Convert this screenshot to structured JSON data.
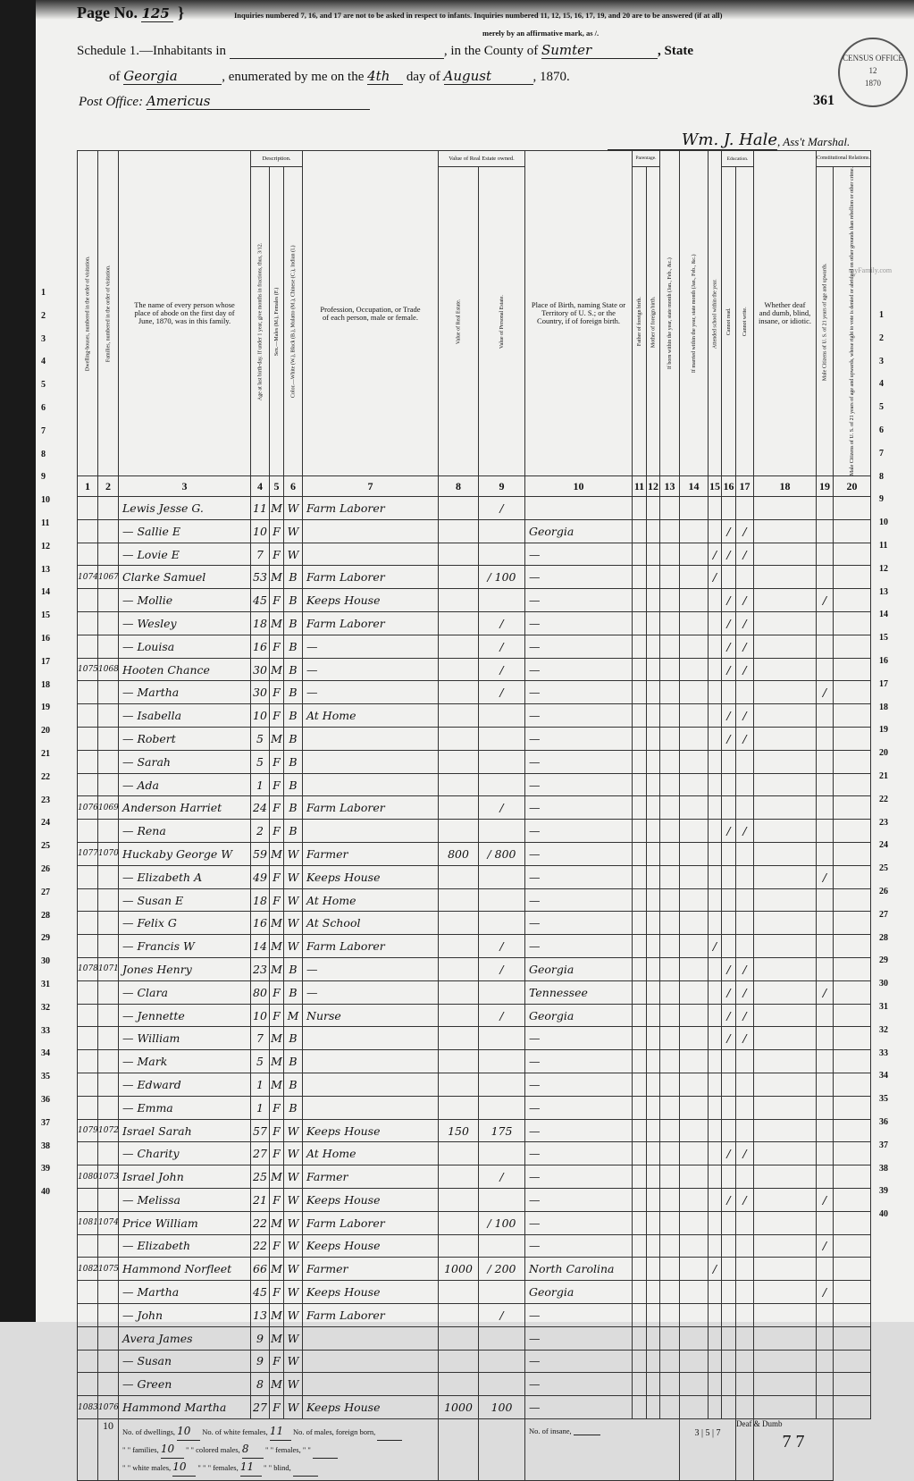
{
  "header": {
    "page_label": "Page No.",
    "page_number": "125",
    "instructions_1": "Inquiries numbered 7, 16, and 17 are not to be asked in respect to infants.  Inquiries numbered 11, 12, 15, 16, 17, 19, and 20 are to be answered (if at all)",
    "instructions_2": "merely by an affirmative mark, as /.",
    "schedule": "Schedule 1.—Inhabitants in",
    "county_label": ", in the County of",
    "county": "Sumter",
    "state_label": ", State",
    "of_label": "of",
    "state": "Georgia",
    "enumerated_label": ", enumerated by me on the",
    "day": "4th",
    "day_of_label": "day of",
    "month": "August",
    "year": ", 1870.",
    "post_office_label": "Post Office:",
    "post_office": "Americus",
    "sheet_number": "361",
    "marshal_signature": "Wm. J. Hale",
    "marshal_label": ", Ass't Marshal.",
    "stamp_text": [
      "CENSUS OFFICE",
      "12",
      "1870"
    ]
  },
  "columns": {
    "c1": "Dwelling-houses, numbered in the order of visitation.",
    "c2": "Families, numbered in the order of visitation.",
    "c3": "The name of every person whose place of abode on the first day of June, 1870, was in this family.",
    "description": "Description.",
    "c4": "Age at last birth-day. If under 1 year, give months in fractions, thus, 3/12.",
    "c5": "Sex.—Males (M.), Females (F.)",
    "c6": "Color.—White (W.), Black (B.), Mulatto (M.), Chinese (C.), Indian (I.)",
    "c7": "Profession, Occupation, or Trade of each person, male or female.",
    "real_estate": "Value of Real Estate owned.",
    "c8": "Value of Real Estate.",
    "c9": "Value of Personal Estate.",
    "c10": "Place of Birth, naming State or Territory of U. S.; or the Country, if of foreign birth.",
    "parentage": "Parentage.",
    "c11": "Father of foreign birth.",
    "c12": "Mother of foreign birth.",
    "c13": "If born within the year, state month (Jan., Feb., &c.)",
    "c14": "If married within the year, state month (Jan., Feb., &c.)",
    "c15": "Attended school within the year.",
    "education": "Education.",
    "c16": "Cannot read.",
    "c17": "Cannot write.",
    "c18": "Whether deaf and dumb, blind, insane, or idiotic.",
    "constitutional": "Constitutional Relations.",
    "c19": "Male Citizens of U. S. of 21 years of age and upwards.",
    "c20": "Male Citizens of U. S. of 21 years of age and upwards, whose right to vote is denied or abridged on other grounds than rebellion or other crime.",
    "numbers": [
      "1",
      "2",
      "3",
      "4",
      "5",
      "6",
      "7",
      "8",
      "9",
      "10",
      "11",
      "12",
      "13",
      "14",
      "15",
      "16",
      "17",
      "18",
      "19",
      "20"
    ]
  },
  "rows": [
    {
      "d": "",
      "f": "",
      "name": "Lewis Jesse G.",
      "age": "11",
      "sex": "M",
      "color": "W",
      "occ": "Farm Laborer",
      "re": "",
      "pe": "/",
      "birth": "",
      "c15": "",
      "c16": "",
      "c17": "",
      "c19": ""
    },
    {
      "d": "",
      "f": "",
      "name": "— Sallie E",
      "age": "10",
      "sex": "F",
      "color": "W",
      "occ": "",
      "re": "",
      "pe": "",
      "birth": "Georgia",
      "c15": "",
      "c16": "/",
      "c17": "/",
      "c19": ""
    },
    {
      "d": "",
      "f": "",
      "name": "— Lovie E",
      "age": "7",
      "sex": "F",
      "color": "W",
      "occ": "",
      "re": "",
      "pe": "",
      "birth": "—",
      "c15": "/",
      "c16": "/",
      "c17": "/",
      "c19": ""
    },
    {
      "d": "1074",
      "f": "1067",
      "name": "Clarke Samuel",
      "age": "53",
      "sex": "M",
      "color": "B",
      "occ": "Farm Laborer",
      "re": "",
      "pe": "/ 100",
      "birth": "—",
      "c15": "/",
      "c16": "",
      "c17": "",
      "c19": ""
    },
    {
      "d": "",
      "f": "",
      "name": "— Mollie",
      "age": "45",
      "sex": "F",
      "color": "B",
      "occ": "Keeps House",
      "re": "",
      "pe": "",
      "birth": "—",
      "c15": "",
      "c16": "/",
      "c17": "/",
      "c19": "/"
    },
    {
      "d": "",
      "f": "",
      "name": "— Wesley",
      "age": "18",
      "sex": "M",
      "color": "B",
      "occ": "Farm Laborer",
      "re": "",
      "pe": "/",
      "birth": "—",
      "c15": "",
      "c16": "/",
      "c17": "/",
      "c19": ""
    },
    {
      "d": "",
      "f": "",
      "name": "— Louisa",
      "age": "16",
      "sex": "F",
      "color": "B",
      "occ": "—",
      "re": "",
      "pe": "/",
      "birth": "—",
      "c15": "",
      "c16": "/",
      "c17": "/",
      "c19": ""
    },
    {
      "d": "1075",
      "f": "1068",
      "name": "Hooten Chance",
      "age": "30",
      "sex": "M",
      "color": "B",
      "occ": "—",
      "re": "",
      "pe": "/",
      "birth": "—",
      "c15": "",
      "c16": "/",
      "c17": "/",
      "c19": ""
    },
    {
      "d": "",
      "f": "",
      "name": "— Martha",
      "age": "30",
      "sex": "F",
      "color": "B",
      "occ": "—",
      "re": "",
      "pe": "/",
      "birth": "—",
      "c15": "",
      "c16": "",
      "c17": "",
      "c19": "/"
    },
    {
      "d": "",
      "f": "",
      "name": "— Isabella",
      "age": "10",
      "sex": "F",
      "color": "B",
      "occ": "At Home",
      "re": "",
      "pe": "",
      "birth": "—",
      "c15": "",
      "c16": "/",
      "c17": "/",
      "c19": ""
    },
    {
      "d": "",
      "f": "",
      "name": "— Robert",
      "age": "5",
      "sex": "M",
      "color": "B",
      "occ": "",
      "re": "",
      "pe": "",
      "birth": "—",
      "c15": "",
      "c16": "/",
      "c17": "/",
      "c19": ""
    },
    {
      "d": "",
      "f": "",
      "name": "— Sarah",
      "age": "5",
      "sex": "F",
      "color": "B",
      "occ": "",
      "re": "",
      "pe": "",
      "birth": "—",
      "c15": "",
      "c16": "",
      "c17": "",
      "c19": ""
    },
    {
      "d": "",
      "f": "",
      "name": "— Ada",
      "age": "1",
      "sex": "F",
      "color": "B",
      "occ": "",
      "re": "",
      "pe": "",
      "birth": "—",
      "c15": "",
      "c16": "",
      "c17": "",
      "c19": ""
    },
    {
      "d": "1076",
      "f": "1069",
      "name": "Anderson Harriet",
      "age": "24",
      "sex": "F",
      "color": "B",
      "occ": "Farm Laborer",
      "re": "",
      "pe": "/",
      "birth": "—",
      "c15": "",
      "c16": "",
      "c17": "",
      "c19": ""
    },
    {
      "d": "",
      "f": "",
      "name": "— Rena",
      "age": "2",
      "sex": "F",
      "color": "B",
      "occ": "",
      "re": "",
      "pe": "",
      "birth": "—",
      "c15": "",
      "c16": "/",
      "c17": "/",
      "c19": ""
    },
    {
      "d": "1077",
      "f": "1070",
      "name": "Huckaby George W",
      "age": "59",
      "sex": "M",
      "color": "W",
      "occ": "Farmer",
      "re": "800",
      "pe": "/ 800",
      "birth": "—",
      "c15": "",
      "c16": "",
      "c17": "",
      "c19": ""
    },
    {
      "d": "",
      "f": "",
      "name": "— Elizabeth A",
      "age": "49",
      "sex": "F",
      "color": "W",
      "occ": "Keeps House",
      "re": "",
      "pe": "",
      "birth": "—",
      "c15": "",
      "c16": "",
      "c17": "",
      "c19": "/"
    },
    {
      "d": "",
      "f": "",
      "name": "— Susan E",
      "age": "18",
      "sex": "F",
      "color": "W",
      "occ": "At Home",
      "re": "",
      "pe": "",
      "birth": "—",
      "c15": "",
      "c16": "",
      "c17": "",
      "c19": ""
    },
    {
      "d": "",
      "f": "",
      "name": "— Felix G",
      "age": "16",
      "sex": "M",
      "color": "W",
      "occ": "At School",
      "re": "",
      "pe": "",
      "birth": "—",
      "c15": "",
      "c16": "",
      "c17": "",
      "c19": ""
    },
    {
      "d": "",
      "f": "",
      "name": "— Francis W",
      "age": "14",
      "sex": "M",
      "color": "W",
      "occ": "Farm Laborer",
      "re": "",
      "pe": "/",
      "birth": "—",
      "c15": "/",
      "c16": "",
      "c17": "",
      "c19": ""
    },
    {
      "d": "1078",
      "f": "1071",
      "name": "Jones Henry",
      "age": "23",
      "sex": "M",
      "color": "B",
      "occ": "—",
      "re": "",
      "pe": "/",
      "birth": "Georgia",
      "c15": "",
      "c16": "/",
      "c17": "/",
      "c19": ""
    },
    {
      "d": "",
      "f": "",
      "name": "— Clara",
      "age": "80",
      "sex": "F",
      "color": "B",
      "occ": "—",
      "re": "",
      "pe": "",
      "birth": "Tennessee",
      "c15": "",
      "c16": "/",
      "c17": "/",
      "c19": "/"
    },
    {
      "d": "",
      "f": "",
      "name": "— Jennette",
      "age": "10",
      "sex": "F",
      "color": "M",
      "occ": "Nurse",
      "re": "",
      "pe": "/",
      "birth": "Georgia",
      "c15": "",
      "c16": "/",
      "c17": "/",
      "c19": ""
    },
    {
      "d": "",
      "f": "",
      "name": "— William",
      "age": "7",
      "sex": "M",
      "color": "B",
      "occ": "",
      "re": "",
      "pe": "",
      "birth": "—",
      "c15": "",
      "c16": "/",
      "c17": "/",
      "c19": ""
    },
    {
      "d": "",
      "f": "",
      "name": "— Mark",
      "age": "5",
      "sex": "M",
      "color": "B",
      "occ": "",
      "re": "",
      "pe": "",
      "birth": "—",
      "c15": "",
      "c16": "",
      "c17": "",
      "c19": ""
    },
    {
      "d": "",
      "f": "",
      "name": "— Edward",
      "age": "1",
      "sex": "M",
      "color": "B",
      "occ": "",
      "re": "",
      "pe": "",
      "birth": "—",
      "c15": "",
      "c16": "",
      "c17": "",
      "c19": ""
    },
    {
      "d": "",
      "f": "",
      "name": "— Emma",
      "age": "1",
      "sex": "F",
      "color": "B",
      "occ": "",
      "re": "",
      "pe": "",
      "birth": "—",
      "c15": "",
      "c16": "",
      "c17": "",
      "c19": ""
    },
    {
      "d": "1079",
      "f": "1072",
      "name": "Israel Sarah",
      "age": "57",
      "sex": "F",
      "color": "W",
      "occ": "Keeps House",
      "re": "150",
      "pe": "175",
      "birth": "—",
      "c15": "",
      "c16": "",
      "c17": "",
      "c19": ""
    },
    {
      "d": "",
      "f": "",
      "name": "— Charity",
      "age": "27",
      "sex": "F",
      "color": "W",
      "occ": "At Home",
      "re": "",
      "pe": "",
      "birth": "—",
      "c15": "",
      "c16": "/",
      "c17": "/",
      "c19": ""
    },
    {
      "d": "1080",
      "f": "1073",
      "name": "Israel John",
      "age": "25",
      "sex": "M",
      "color": "W",
      "occ": "Farmer",
      "re": "",
      "pe": "/",
      "birth": "—",
      "c15": "",
      "c16": "",
      "c17": "",
      "c19": ""
    },
    {
      "d": "",
      "f": "",
      "name": "— Melissa",
      "age": "21",
      "sex": "F",
      "color": "W",
      "occ": "Keeps House",
      "re": "",
      "pe": "",
      "birth": "—",
      "c15": "",
      "c16": "/",
      "c17": "/",
      "c19": "/"
    },
    {
      "d": "1081",
      "f": "1074",
      "name": "Price William",
      "age": "22",
      "sex": "M",
      "color": "W",
      "occ": "Farm Laborer",
      "re": "",
      "pe": "/ 100",
      "birth": "—",
      "c15": "",
      "c16": "",
      "c17": "",
      "c19": ""
    },
    {
      "d": "",
      "f": "",
      "name": "— Elizabeth",
      "age": "22",
      "sex": "F",
      "color": "W",
      "occ": "Keeps House",
      "re": "",
      "pe": "",
      "birth": "—",
      "c15": "",
      "c16": "",
      "c17": "",
      "c19": "/"
    },
    {
      "d": "1082",
      "f": "1075",
      "name": "Hammond Norfleet",
      "age": "66",
      "sex": "M",
      "color": "W",
      "occ": "Farmer",
      "re": "1000",
      "pe": "/ 200",
      "birth": "North Carolina",
      "c15": "/",
      "c16": "",
      "c17": "",
      "c19": ""
    },
    {
      "d": "",
      "f": "",
      "name": "— Martha",
      "age": "45",
      "sex": "F",
      "color": "W",
      "occ": "Keeps House",
      "re": "",
      "pe": "",
      "birth": "Georgia",
      "c15": "",
      "c16": "",
      "c17": "",
      "c19": "/"
    },
    {
      "d": "",
      "f": "",
      "name": "— John",
      "age": "13",
      "sex": "M",
      "color": "W",
      "occ": "Farm Laborer",
      "re": "",
      "pe": "/",
      "birth": "—",
      "c15": "",
      "c16": "",
      "c17": "",
      "c19": ""
    },
    {
      "d": "",
      "f": "",
      "name": "Avera James",
      "age": "9",
      "sex": "M",
      "color": "W",
      "occ": "",
      "re": "",
      "pe": "",
      "birth": "—",
      "c15": "",
      "c16": "",
      "c17": "",
      "c19": ""
    },
    {
      "d": "",
      "f": "",
      "name": "— Susan",
      "age": "9",
      "sex": "F",
      "color": "W",
      "occ": "",
      "re": "",
      "pe": "",
      "birth": "—",
      "c15": "",
      "c16": "",
      "c17": "",
      "c19": ""
    },
    {
      "d": "",
      "f": "",
      "name": "— Green",
      "age": "8",
      "sex": "M",
      "color": "W",
      "occ": "",
      "re": "",
      "pe": "",
      "birth": "—",
      "c15": "",
      "c16": "",
      "c17": "",
      "c19": ""
    },
    {
      "d": "1083",
      "f": "1076",
      "name": "Hammond Martha",
      "age": "27",
      "sex": "F",
      "color": "W",
      "occ": "Keeps House",
      "re": "1000",
      "pe": "100",
      "birth": "—",
      "c15": "",
      "c16": "",
      "c17": "",
      "c19": ""
    }
  ],
  "footer": {
    "col1_total": "10",
    "dwellings_label": "No. of dwellings,",
    "dwellings": "10",
    "families_label": "\" \" families,",
    "families": "10",
    "white_males_label": "\" \" white males,",
    "white_males": "10",
    "white_females_label": "No. of white females,",
    "white_females": "11",
    "colored_males_label": "\" \" colored males,",
    "colored_males": "8",
    "colored_females_label": "\" \" \" females,",
    "colored_females": "11",
    "foreign_males_label": "No. of males, foreign born,",
    "foreign_males": "",
    "foreign_females_label": "\" \" females, \" \"",
    "foreign_females": "",
    "blind_label": "\" \" blind,",
    "blind": "",
    "insane_label": "No. of insane,",
    "insane": "",
    "totals_15_17": "3 | 5 | 7",
    "deaf_note": "Deaf & Dumb",
    "totals_19_20": "7 7"
  },
  "watermark": "myFamily.com"
}
